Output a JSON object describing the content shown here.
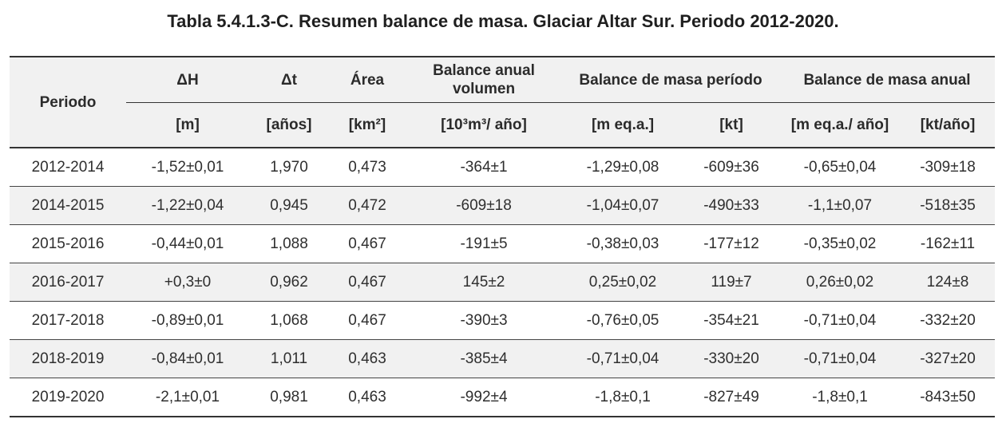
{
  "title": "Tabla 5.4.1.3-C. Resumen balance de masa. Glaciar Altar Sur. Periodo 2012-2020.",
  "header": {
    "periodo": "Periodo",
    "dh": "ΔH",
    "dt": "Δt",
    "area": "Área",
    "bav": "Balance anual volumen",
    "bmp": "Balance de masa período",
    "bma": "Balance de masa anual",
    "units": {
      "dh": "[m]",
      "dt": "[años]",
      "area": "[km²]",
      "bav": "[10³m³/ año]",
      "bmp_m": "[m eq.a.]",
      "bmp_kt": "[kt]",
      "bma_m": "[m eq.a./ año]",
      "bma_kt": "[kt/año]"
    }
  },
  "rows": [
    [
      "2012-2014",
      "-1,52±0,01",
      "1,970",
      "0,473",
      "-364±1",
      "-1,29±0,08",
      "-609±36",
      "-0,65±0,04",
      "-309±18"
    ],
    [
      "2014-2015",
      "-1,22±0,04",
      "0,945",
      "0,472",
      "-609±18",
      "-1,04±0,07",
      "-490±33",
      "-1,1±0,07",
      "-518±35"
    ],
    [
      "2015-2016",
      "-0,44±0,01",
      "1,088",
      "0,467",
      "-191±5",
      "-0,38±0,03",
      "-177±12",
      "-0,35±0,02",
      "-162±11"
    ],
    [
      "2016-2017",
      "+0,3±0",
      "0,962",
      "0,467",
      "145±2",
      "0,25±0,02",
      "119±7",
      "0,26±0,02",
      "124±8"
    ],
    [
      "2017-2018",
      "-0,89±0,01",
      "1,068",
      "0,467",
      "-390±3",
      "-0,76±0,05",
      "-354±21",
      "-0,71±0,04",
      "-332±20"
    ],
    [
      "2018-2019",
      "-0,84±0,01",
      "1,011",
      "0,463",
      "-385±4",
      "-0,71±0,04",
      "-330±20",
      "-0,71±0,04",
      "-327±20"
    ],
    [
      "2019-2020",
      "-2,1±0,01",
      "0,981",
      "0,463",
      "-992±4",
      "-1,8±0,1",
      "-827±49",
      "-1,8±0,1",
      "-843±50"
    ]
  ]
}
